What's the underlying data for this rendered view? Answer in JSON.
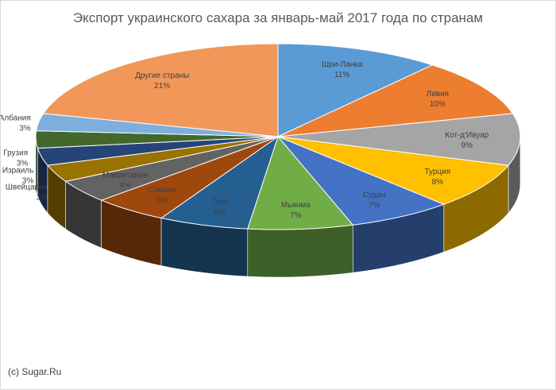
{
  "chart_data": {
    "type": "pie",
    "title": "Экспорт украинского сахара за январь-май 2017 года по странам",
    "slices": [
      {
        "label": "Шри-Ланка",
        "pct_label": "11%",
        "value": 11,
        "color": "#5b9bd5",
        "label_color": "#404040"
      },
      {
        "label": "Ливия",
        "pct_label": "10%",
        "value": 10,
        "color": "#ed7d31",
        "label_color": "#404040"
      },
      {
        "label": "Кот-д'Ивуар",
        "pct_label": "9%",
        "value": 9,
        "color": "#a5a5a5",
        "label_color": "#404040"
      },
      {
        "label": "Турция",
        "pct_label": "8%",
        "value": 8,
        "color": "#ffc000",
        "label_color": "#404040"
      },
      {
        "label": "Судан",
        "pct_label": "7%",
        "value": 7,
        "color": "#4472c4",
        "label_color": "#404040"
      },
      {
        "label": "Мьянма",
        "pct_label": "7%",
        "value": 7,
        "color": "#70ad47",
        "label_color": "#404040"
      },
      {
        "label": "Того",
        "pct_label": "6%",
        "value": 6,
        "color": "#255e91",
        "label_color": "#404040"
      },
      {
        "label": "Сомали",
        "pct_label": "5%",
        "value": 5,
        "color": "#9e480e",
        "label_color": "#404040"
      },
      {
        "label": "Мавритания",
        "pct_label": "4%",
        "value": 4,
        "color": "#636363",
        "label_color": "#404040"
      },
      {
        "label": "Швейцария",
        "pct_label": "3%",
        "value": 3,
        "color": "#997300",
        "label_color": "#404040"
      },
      {
        "label": "Израиль",
        "pct_label": "3%",
        "value": 3,
        "color": "#264478",
        "label_color": "#404040"
      },
      {
        "label": "Грузия",
        "pct_label": "3%",
        "value": 3,
        "color": "#43682b",
        "label_color": "#404040"
      },
      {
        "label": "Албания",
        "pct_label": "3%",
        "value": 3,
        "color": "#7cafdd",
        "label_color": "#404040"
      },
      {
        "label": "Другие страны",
        "pct_label": "21%",
        "value": 21,
        "color": "#f1975a",
        "label_color": "#404040"
      }
    ]
  },
  "footer": {
    "credit": "(c) Sugar.Ru"
  }
}
